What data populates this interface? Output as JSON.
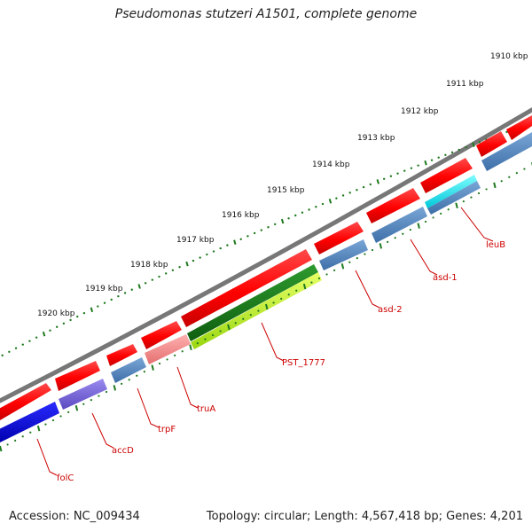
{
  "title": "Pseudomonas stutzeri A1501, complete genome",
  "footer": {
    "accession": "Accession: NC_009434",
    "summary": "Topology: circular; Length: 4,567,418 bp; Genes: 4,201"
  },
  "scale_labels": [
    "1910 kbp",
    "1911 kbp",
    "1912 kbp",
    "1913 kbp",
    "1914 kbp",
    "1915 kbp",
    "1916 kbp",
    "1917 kbp",
    "1918 kbp",
    "1919 kbp",
    "1920 kbp"
  ],
  "gene_labels": [
    "leuB",
    "asd-1",
    "asd-2",
    "PST_1777",
    "truA",
    "trpF",
    "accD",
    "folC"
  ],
  "colors": {
    "backbone": "#777777",
    "forward": "#ff0000",
    "cds_default": "#4f86c6",
    "ticks": "#1f7a1f",
    "labels": "#cc0000"
  }
}
